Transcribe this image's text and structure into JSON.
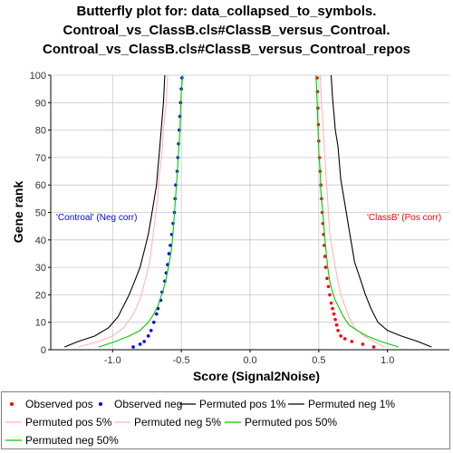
{
  "title_lines": [
    "Butterfly plot for: data_collapsed_to_symbols.",
    "Controal_vs_ClassB.cls#ClassB_versus_Controal.",
    "Controal_vs_ClassB.cls#ClassB_versus_Controal_repos"
  ],
  "legend": [
    {
      "label": "Observed pos",
      "kind": "dot",
      "color": "#ff0000"
    },
    {
      "label": "Observed neg",
      "kind": "dot",
      "color": "#0000ff"
    },
    {
      "label": "Permuted pos 1%",
      "kind": "line",
      "color": "#000000"
    },
    {
      "label": "Permuted neg 1%",
      "kind": "line",
      "color": "#000000"
    },
    {
      "label": "Permuted pos 5%",
      "kind": "line",
      "color": "#ffb6b6"
    },
    {
      "label": "Permuted neg 5%",
      "kind": "line",
      "color": "#ffb6b6"
    },
    {
      "label": "Permuted pos 50%",
      "kind": "line",
      "color": "#00cc00"
    },
    {
      "label": "Permuted neg 50%",
      "kind": "line",
      "color": "#00cc00"
    }
  ],
  "chart_data": {
    "type": "scatter",
    "xlabel": "Score (Signal2Noise)",
    "ylabel": "Gene rank",
    "xlim": [
      -1.45,
      1.45
    ],
    "ylim": [
      0,
      100
    ],
    "xticks": [
      -1.0,
      -0.5,
      0.0,
      0.5,
      1.0
    ],
    "xtick_labels": [
      "-1.0",
      "-0.5",
      "0.0",
      "0.5",
      "1.0"
    ],
    "yticks": [
      0,
      10,
      20,
      30,
      40,
      50,
      60,
      70,
      80,
      90,
      100
    ],
    "grid": true,
    "annotations": {
      "neg": {
        "text": "'Controal' (Neg corr)",
        "color": "#0000ff"
      },
      "pos": {
        "text": "'ClassB' (Pos corr)",
        "color": "#ff0000"
      }
    },
    "series": [
      {
        "name": "Observed pos",
        "kind": "points",
        "color": "#ff0000",
        "points": [
          [
            0.9,
            1
          ],
          [
            0.82,
            2
          ],
          [
            0.74,
            3
          ],
          [
            0.69,
            4
          ],
          [
            0.66,
            5
          ],
          [
            0.64,
            7
          ],
          [
            0.63,
            9
          ],
          [
            0.62,
            11
          ],
          [
            0.61,
            13
          ],
          [
            0.6,
            15
          ],
          [
            0.59,
            17
          ],
          [
            0.58,
            20
          ],
          [
            0.57,
            23
          ],
          [
            0.56,
            26
          ],
          [
            0.55,
            30
          ],
          [
            0.545,
            34
          ],
          [
            0.54,
            38
          ],
          [
            0.535,
            42
          ],
          [
            0.53,
            46
          ],
          [
            0.525,
            50
          ],
          [
            0.52,
            55
          ],
          [
            0.515,
            60
          ],
          [
            0.51,
            65
          ],
          [
            0.505,
            70
          ],
          [
            0.5,
            76
          ],
          [
            0.497,
            82
          ],
          [
            0.493,
            88
          ],
          [
            0.49,
            94
          ],
          [
            0.487,
            99
          ]
        ]
      },
      {
        "name": "Observed neg",
        "kind": "points",
        "color": "#0000ff",
        "points": [
          [
            -0.85,
            1
          ],
          [
            -0.8,
            2
          ],
          [
            -0.77,
            3
          ],
          [
            -0.74,
            5
          ],
          [
            -0.72,
            7
          ],
          [
            -0.7,
            10
          ],
          [
            -0.68,
            13
          ],
          [
            -0.67,
            15
          ],
          [
            -0.65,
            18
          ],
          [
            -0.64,
            21
          ],
          [
            -0.62,
            25
          ],
          [
            -0.61,
            28
          ],
          [
            -0.6,
            31
          ],
          [
            -0.59,
            35
          ],
          [
            -0.58,
            38
          ],
          [
            -0.57,
            42
          ],
          [
            -0.56,
            46
          ],
          [
            -0.55,
            50
          ],
          [
            -0.545,
            55
          ],
          [
            -0.54,
            60
          ],
          [
            -0.53,
            65
          ],
          [
            -0.525,
            70
          ],
          [
            -0.52,
            75
          ],
          [
            -0.515,
            80
          ],
          [
            -0.51,
            85
          ],
          [
            -0.505,
            90
          ],
          [
            -0.5,
            95
          ],
          [
            -0.495,
            99
          ]
        ]
      },
      {
        "name": "Permuted pos 1%",
        "kind": "line",
        "color": "#000000",
        "points": [
          [
            1.32,
            1
          ],
          [
            1.22,
            3
          ],
          [
            1.1,
            5
          ],
          [
            1.0,
            7
          ],
          [
            0.93,
            10
          ],
          [
            0.88,
            15
          ],
          [
            0.84,
            20
          ],
          [
            0.8,
            26
          ],
          [
            0.76,
            32
          ],
          [
            0.74,
            38
          ],
          [
            0.72,
            44
          ],
          [
            0.7,
            50
          ],
          [
            0.68,
            56
          ],
          [
            0.66,
            62
          ],
          [
            0.65,
            68
          ],
          [
            0.64,
            74
          ],
          [
            0.62,
            80
          ],
          [
            0.61,
            86
          ],
          [
            0.6,
            92
          ],
          [
            0.59,
            100
          ]
        ]
      },
      {
        "name": "Permuted neg 1%",
        "kind": "line",
        "color": "#000000",
        "points": [
          [
            -1.35,
            1
          ],
          [
            -1.25,
            3
          ],
          [
            -1.13,
            5
          ],
          [
            -1.03,
            8
          ],
          [
            -0.96,
            12
          ],
          [
            -0.92,
            16
          ],
          [
            -0.88,
            20
          ],
          [
            -0.84,
            25
          ],
          [
            -0.8,
            30
          ],
          [
            -0.77,
            36
          ],
          [
            -0.74,
            42
          ],
          [
            -0.72,
            48
          ],
          [
            -0.7,
            54
          ],
          [
            -0.68,
            60
          ],
          [
            -0.67,
            66
          ],
          [
            -0.66,
            72
          ],
          [
            -0.65,
            78
          ],
          [
            -0.64,
            84
          ],
          [
            -0.63,
            90
          ],
          [
            -0.62,
            100
          ]
        ]
      },
      {
        "name": "Permuted pos 5%",
        "kind": "line",
        "color": "#ffb6b6",
        "points": [
          [
            0.98,
            1
          ],
          [
            0.9,
            3
          ],
          [
            0.83,
            5
          ],
          [
            0.76,
            8
          ],
          [
            0.72,
            12
          ],
          [
            0.69,
            16
          ],
          [
            0.66,
            20
          ],
          [
            0.64,
            25
          ],
          [
            0.62,
            30
          ],
          [
            0.6,
            36
          ],
          [
            0.58,
            42
          ],
          [
            0.57,
            50
          ],
          [
            0.56,
            58
          ],
          [
            0.55,
            66
          ],
          [
            0.54,
            74
          ],
          [
            0.53,
            82
          ],
          [
            0.52,
            90
          ],
          [
            0.51,
            100
          ]
        ]
      },
      {
        "name": "Permuted neg 5%",
        "kind": "line",
        "color": "#ffb6b6",
        "points": [
          [
            -1.25,
            1
          ],
          [
            -1.1,
            3
          ],
          [
            -1.0,
            5
          ],
          [
            -0.92,
            8
          ],
          [
            -0.86,
            12
          ],
          [
            -0.82,
            16
          ],
          [
            -0.79,
            20
          ],
          [
            -0.76,
            26
          ],
          [
            -0.73,
            32
          ],
          [
            -0.71,
            40
          ],
          [
            -0.69,
            48
          ],
          [
            -0.67,
            56
          ],
          [
            -0.66,
            64
          ],
          [
            -0.64,
            72
          ],
          [
            -0.63,
            80
          ],
          [
            -0.61,
            90
          ],
          [
            -0.6,
            100
          ]
        ]
      },
      {
        "name": "Permuted pos 50%",
        "kind": "line",
        "color": "#00cc00",
        "points": [
          [
            1.08,
            1
          ],
          [
            0.95,
            3
          ],
          [
            0.85,
            5
          ],
          [
            0.78,
            7
          ],
          [
            0.72,
            9
          ],
          [
            0.68,
            12
          ],
          [
            0.65,
            15
          ],
          [
            0.62,
            18
          ],
          [
            0.6,
            21
          ],
          [
            0.58,
            25
          ],
          [
            0.565,
            30
          ],
          [
            0.555,
            35
          ],
          [
            0.545,
            40
          ],
          [
            0.535,
            46
          ],
          [
            0.525,
            52
          ],
          [
            0.515,
            58
          ],
          [
            0.51,
            65
          ],
          [
            0.5,
            72
          ],
          [
            0.495,
            80
          ],
          [
            0.49,
            88
          ],
          [
            0.485,
            94
          ],
          [
            0.48,
            100
          ]
        ]
      },
      {
        "name": "Permuted neg 50%",
        "kind": "line",
        "color": "#00cc00",
        "points": [
          [
            -1.1,
            1
          ],
          [
            -0.98,
            3
          ],
          [
            -0.88,
            5
          ],
          [
            -0.8,
            7
          ],
          [
            -0.74,
            10
          ],
          [
            -0.7,
            13
          ],
          [
            -0.67,
            16
          ],
          [
            -0.65,
            19
          ],
          [
            -0.63,
            22
          ],
          [
            -0.61,
            26
          ],
          [
            -0.59,
            31
          ],
          [
            -0.57,
            37
          ],
          [
            -0.56,
            43
          ],
          [
            -0.55,
            50
          ],
          [
            -0.54,
            57
          ],
          [
            -0.53,
            64
          ],
          [
            -0.52,
            72
          ],
          [
            -0.51,
            80
          ],
          [
            -0.505,
            88
          ],
          [
            -0.5,
            94
          ],
          [
            -0.49,
            100
          ]
        ]
      }
    ]
  }
}
